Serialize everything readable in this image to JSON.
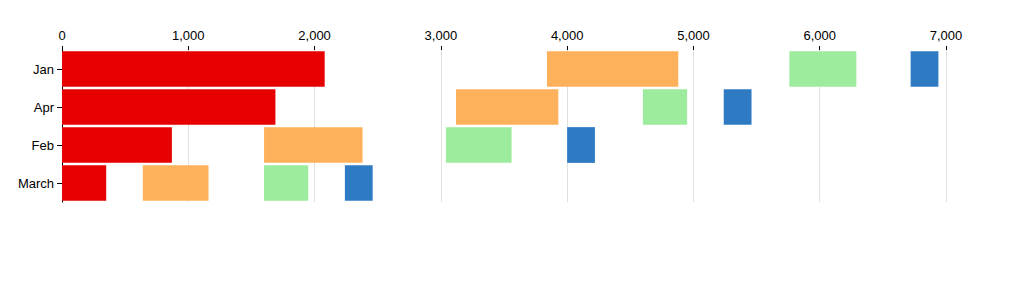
{
  "chart_data": {
    "type": "bar",
    "orientation": "horizontal",
    "grid": true,
    "categories": [
      "Jan",
      "Apr",
      "Feb",
      "March"
    ],
    "series": [
      {
        "color": "#e60000",
        "values": [
          [
            0,
            2080
          ],
          [
            0,
            1690
          ],
          [
            0,
            870
          ],
          [
            0,
            350
          ]
        ]
      },
      {
        "color": "#ffb05a",
        "values": [
          [
            3840,
            4880
          ],
          [
            3120,
            3930
          ],
          [
            1600,
            2380
          ],
          [
            640,
            1160
          ]
        ]
      },
      {
        "color": "#9deb9d",
        "values": [
          [
            5760,
            6290
          ],
          [
            4600,
            4950
          ],
          [
            3040,
            3560
          ],
          [
            1600,
            1950
          ]
        ]
      },
      {
        "color": "#2e7bc4",
        "values": [
          [
            6720,
            6940
          ],
          [
            5240,
            5460
          ],
          [
            4000,
            4220
          ],
          [
            2240,
            2460
          ]
        ]
      }
    ],
    "xlim": [
      0,
      7000
    ],
    "xticks": [
      0,
      {
        "value": 1000,
        "label": "1,000"
      },
      {
        "value": 2000,
        "label": "2,000"
      },
      {
        "value": 3000,
        "label": "3,000"
      },
      {
        "value": 4000,
        "label": "4,000"
      },
      {
        "value": 5000,
        "label": "5,000"
      },
      {
        "value": 6000,
        "label": "6,000"
      },
      {
        "value": 7000,
        "label": "7,000"
      }
    ]
  }
}
